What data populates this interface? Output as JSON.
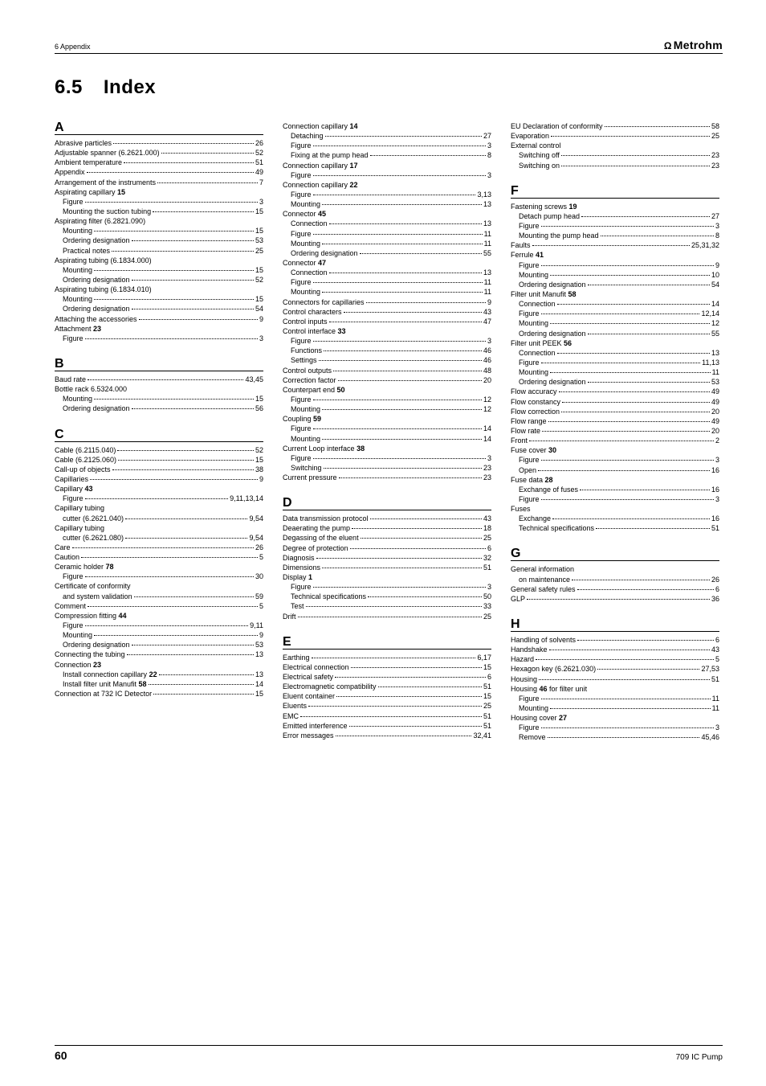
{
  "header": {
    "left": "6 Appendix",
    "logo_glyph": "Ω",
    "brand": "Metrohm"
  },
  "title": {
    "num": "6.5",
    "label": "Index"
  },
  "footer": {
    "pagenum": "60",
    "doc": "709 IC Pump"
  },
  "letters": [
    "A",
    "B",
    "C",
    "D",
    "E",
    "F",
    "G",
    "H"
  ],
  "col1": [
    {
      "type": "letter",
      "text": "A"
    },
    {
      "type": "row",
      "label": "Abrasive particles",
      "page": "26"
    },
    {
      "type": "row",
      "label": "Adjustable spanner (6.2621.000)",
      "page": "52"
    },
    {
      "type": "row",
      "label": "Ambient temperature",
      "page": "51"
    },
    {
      "type": "row",
      "label": "Appendix",
      "page": "49"
    },
    {
      "type": "row",
      "label": "Arrangement of the instruments",
      "page": "7"
    },
    {
      "type": "head",
      "label": "Aspirating capillary",
      "bold": "15"
    },
    {
      "type": "row",
      "indent": 1,
      "label": "Figure",
      "page": "3"
    },
    {
      "type": "row",
      "indent": 1,
      "label": "Mounting the suction tubing",
      "page": "15"
    },
    {
      "type": "head",
      "label": "Aspirating filter (6.2821.090)"
    },
    {
      "type": "row",
      "indent": 1,
      "label": "Mounting",
      "page": "15"
    },
    {
      "type": "row",
      "indent": 1,
      "label": "Ordering designation",
      "page": "53"
    },
    {
      "type": "row",
      "indent": 1,
      "label": "Practical notes",
      "page": "25"
    },
    {
      "type": "head",
      "label": "Aspirating tubing (6.1834.000)"
    },
    {
      "type": "row",
      "indent": 1,
      "label": "Mounting",
      "page": "15"
    },
    {
      "type": "row",
      "indent": 1,
      "label": "Ordering designation",
      "page": "52"
    },
    {
      "type": "head",
      "label": "Aspirating tubing (6.1834.010)"
    },
    {
      "type": "row",
      "indent": 1,
      "label": "Mounting",
      "page": "15"
    },
    {
      "type": "row",
      "indent": 1,
      "label": "Ordering designation",
      "page": "54"
    },
    {
      "type": "row",
      "label": "Attaching the accessories",
      "page": "9"
    },
    {
      "type": "head",
      "label": "Attachment",
      "bold": "23"
    },
    {
      "type": "row",
      "indent": 1,
      "label": "Figure",
      "page": "3"
    },
    {
      "type": "letter",
      "text": "B"
    },
    {
      "type": "row",
      "label": "Baud rate",
      "page": "43,45"
    },
    {
      "type": "head",
      "label": "Bottle rack 6.5324.000"
    },
    {
      "type": "row",
      "indent": 1,
      "label": "Mounting",
      "page": "15"
    },
    {
      "type": "row",
      "indent": 1,
      "label": "Ordering designation",
      "page": "56"
    },
    {
      "type": "letter",
      "text": "C"
    },
    {
      "type": "row",
      "label": "Cable (6.2115.040)",
      "page": "52"
    },
    {
      "type": "row",
      "label": "Cable (6.2125.060)",
      "page": "15"
    },
    {
      "type": "row",
      "label": "Call-up of objects",
      "page": "38"
    },
    {
      "type": "row",
      "label": "Capillaries",
      "page": "9"
    },
    {
      "type": "head",
      "label": "Capillary",
      "bold": "43"
    },
    {
      "type": "row",
      "indent": 1,
      "label": "Figure",
      "page": "9,11,13,14"
    },
    {
      "type": "head",
      "label": "Capillary tubing"
    },
    {
      "type": "row",
      "indent": 1,
      "label": "cutter (6.2621.040)",
      "page": "9,54"
    },
    {
      "type": "head",
      "label": "Capillary tubing"
    },
    {
      "type": "row",
      "indent": 1,
      "label": "cutter (6.2621.080)",
      "page": "9,54"
    },
    {
      "type": "row",
      "label": "Care",
      "page": "26"
    },
    {
      "type": "row",
      "label": "Caution",
      "page": "5"
    },
    {
      "type": "head",
      "label": "Ceramic holder",
      "bold": "78"
    },
    {
      "type": "row",
      "indent": 1,
      "label": "Figure",
      "page": "30"
    },
    {
      "type": "head",
      "label": "Certificate of conformity"
    },
    {
      "type": "row",
      "indent": 1,
      "label": "and system validation",
      "page": "59"
    },
    {
      "type": "row",
      "label": "Comment",
      "page": "5"
    },
    {
      "type": "head",
      "label": "Compression fitting",
      "bold": "44"
    },
    {
      "type": "row",
      "indent": 1,
      "label": "Figure",
      "page": "9,11"
    },
    {
      "type": "row",
      "indent": 1,
      "label": "Mounting",
      "page": "9"
    },
    {
      "type": "row",
      "indent": 1,
      "label": "Ordering designation",
      "page": "53"
    },
    {
      "type": "row",
      "label": "Connecting the tubing",
      "page": "13"
    },
    {
      "type": "head",
      "label": "Connection",
      "bold": "23"
    },
    {
      "type": "row",
      "indent": 1,
      "label": "Install connection capillary",
      "boldin": "22",
      "page": "13"
    },
    {
      "type": "row",
      "indent": 1,
      "label": "Install filter unit Manufit",
      "boldin": "58",
      "page": "14"
    },
    {
      "type": "row",
      "label": "Connection at 732 IC Detector",
      "page": "15"
    }
  ],
  "col2": [
    {
      "type": "head",
      "label": "Connection capillary",
      "bold": "14"
    },
    {
      "type": "row",
      "indent": 1,
      "label": "Detaching",
      "page": "27"
    },
    {
      "type": "row",
      "indent": 1,
      "label": "Figure",
      "page": "3"
    },
    {
      "type": "row",
      "indent": 1,
      "label": "Fixing at the pump head",
      "page": "8"
    },
    {
      "type": "head",
      "label": "Connection capillary",
      "bold": "17"
    },
    {
      "type": "row",
      "indent": 1,
      "label": "Figure",
      "page": "3"
    },
    {
      "type": "head",
      "label": "Connection capillary",
      "bold": "22"
    },
    {
      "type": "row",
      "indent": 1,
      "label": "Figure",
      "page": "3,13"
    },
    {
      "type": "row",
      "indent": 1,
      "label": "Mounting",
      "page": "13"
    },
    {
      "type": "head",
      "label": "Connector",
      "bold": "45"
    },
    {
      "type": "row",
      "indent": 1,
      "label": "Connection",
      "page": "13"
    },
    {
      "type": "row",
      "indent": 1,
      "label": "Figure",
      "page": "11"
    },
    {
      "type": "row",
      "indent": 1,
      "label": "Mounting",
      "page": "11"
    },
    {
      "type": "row",
      "indent": 1,
      "label": "Ordering designation",
      "page": "55"
    },
    {
      "type": "head",
      "label": "Connector",
      "bold": "47"
    },
    {
      "type": "row",
      "indent": 1,
      "label": "Connection",
      "page": "13"
    },
    {
      "type": "row",
      "indent": 1,
      "label": "Figure",
      "page": "11"
    },
    {
      "type": "row",
      "indent": 1,
      "label": "Mounting",
      "page": "11"
    },
    {
      "type": "row",
      "label": "Connectors for capillaries",
      "page": "9"
    },
    {
      "type": "row",
      "label": "Control characters",
      "page": "43"
    },
    {
      "type": "row",
      "label": "Control inputs",
      "page": "47"
    },
    {
      "type": "head",
      "label": "Control interface",
      "bold": "33"
    },
    {
      "type": "row",
      "indent": 1,
      "label": "Figure",
      "page": "3"
    },
    {
      "type": "row",
      "indent": 1,
      "label": "Functions",
      "page": "46"
    },
    {
      "type": "row",
      "indent": 1,
      "label": "Settings",
      "page": "46"
    },
    {
      "type": "row",
      "label": "Control outputs",
      "page": "48"
    },
    {
      "type": "row",
      "label": "Correction factor",
      "page": "20"
    },
    {
      "type": "head",
      "label": "Counterpart end",
      "bold": "50"
    },
    {
      "type": "row",
      "indent": 1,
      "label": "Figure",
      "page": "12"
    },
    {
      "type": "row",
      "indent": 1,
      "label": "Mounting",
      "page": "12"
    },
    {
      "type": "head",
      "label": "Coupling",
      "bold": "59"
    },
    {
      "type": "row",
      "indent": 1,
      "label": "Figure",
      "page": "14"
    },
    {
      "type": "row",
      "indent": 1,
      "label": "Mounting",
      "page": "14"
    },
    {
      "type": "head",
      "label": "Current Loop interface",
      "bold": "38"
    },
    {
      "type": "row",
      "indent": 1,
      "label": "Figure",
      "page": "3"
    },
    {
      "type": "row",
      "indent": 1,
      "label": "Switching",
      "page": "23"
    },
    {
      "type": "row",
      "label": "Current pressure",
      "page": "23"
    },
    {
      "type": "letter",
      "text": "D"
    },
    {
      "type": "row",
      "label": "Data transmission protocol",
      "page": "43"
    },
    {
      "type": "row",
      "label": "Deaerating the pump",
      "page": "18"
    },
    {
      "type": "row",
      "label": "Degassing of the eluent",
      "page": "25"
    },
    {
      "type": "row",
      "label": "Degree of protection",
      "page": "6"
    },
    {
      "type": "row",
      "label": "Diagnosis",
      "page": "32"
    },
    {
      "type": "row",
      "label": "Dimensions",
      "page": "51"
    },
    {
      "type": "head",
      "label": "Display",
      "bold": "1"
    },
    {
      "type": "row",
      "indent": 1,
      "label": "Figure",
      "page": "3"
    },
    {
      "type": "row",
      "indent": 1,
      "label": "Technical specifications",
      "page": "50"
    },
    {
      "type": "row",
      "indent": 1,
      "label": "Test",
      "page": "33"
    },
    {
      "type": "row",
      "label": "Drift",
      "page": "25"
    },
    {
      "type": "letter",
      "text": "E"
    },
    {
      "type": "row",
      "label": "Earthing",
      "page": "6,17"
    },
    {
      "type": "row",
      "label": "Electrical connection",
      "page": "15"
    },
    {
      "type": "row",
      "label": "Electrical safety",
      "page": "6"
    },
    {
      "type": "row",
      "label": "Electromagnetic compatibility",
      "page": "51"
    },
    {
      "type": "row",
      "label": "Eluent container",
      "page": "15"
    },
    {
      "type": "row",
      "label": "Eluents",
      "page": "25"
    },
    {
      "type": "row",
      "label": "EMC",
      "page": "51"
    },
    {
      "type": "row",
      "label": "Emitted interference",
      "page": "51"
    },
    {
      "type": "row",
      "label": "Error messages",
      "page": "32,41"
    }
  ],
  "col3": [
    {
      "type": "row",
      "label": "EU Declaration of conformity",
      "page": "58"
    },
    {
      "type": "row",
      "label": "Evaporation",
      "page": "25"
    },
    {
      "type": "head",
      "label": "External control"
    },
    {
      "type": "row",
      "indent": 1,
      "label": "Switching off",
      "page": "23"
    },
    {
      "type": "row",
      "indent": 1,
      "label": "Switching on",
      "page": "23"
    },
    {
      "type": "letter",
      "text": "F"
    },
    {
      "type": "head",
      "label": "Fastening screws",
      "bold": "19"
    },
    {
      "type": "row",
      "indent": 1,
      "label": "Detach pump head",
      "page": "27"
    },
    {
      "type": "row",
      "indent": 1,
      "label": "Figure",
      "page": "3"
    },
    {
      "type": "row",
      "indent": 1,
      "label": "Mounting the pump head",
      "page": "8"
    },
    {
      "type": "row",
      "label": "Faults",
      "page": "25,31,32"
    },
    {
      "type": "head",
      "label": "Ferrule",
      "bold": "41"
    },
    {
      "type": "row",
      "indent": 1,
      "label": "Figure",
      "page": "9"
    },
    {
      "type": "row",
      "indent": 1,
      "label": "Mounting",
      "page": "10"
    },
    {
      "type": "row",
      "indent": 1,
      "label": "Ordering designation",
      "page": "54"
    },
    {
      "type": "head",
      "label": "Filter unit Manufit",
      "bold": "58"
    },
    {
      "type": "row",
      "indent": 1,
      "label": "Connection",
      "page": "14"
    },
    {
      "type": "row",
      "indent": 1,
      "label": "Figure",
      "page": "12,14"
    },
    {
      "type": "row",
      "indent": 1,
      "label": "Mounting",
      "page": "12"
    },
    {
      "type": "row",
      "indent": 1,
      "label": "Ordering designation",
      "page": "55"
    },
    {
      "type": "head",
      "label": "Filter unit PEEK",
      "bold": "56"
    },
    {
      "type": "row",
      "indent": 1,
      "label": "Connection",
      "page": "13"
    },
    {
      "type": "row",
      "indent": 1,
      "label": "Figure",
      "page": "11,13"
    },
    {
      "type": "row",
      "indent": 1,
      "label": "Mounting",
      "page": "11"
    },
    {
      "type": "row",
      "indent": 1,
      "label": "Ordering designation",
      "page": "53"
    },
    {
      "type": "row",
      "label": "Flow accuracy",
      "page": "49"
    },
    {
      "type": "row",
      "label": "Flow constancy",
      "page": "49"
    },
    {
      "type": "row",
      "label": "Flow correction",
      "page": "20"
    },
    {
      "type": "row",
      "label": "Flow range",
      "page": "49"
    },
    {
      "type": "row",
      "label": "Flow rate",
      "page": "20"
    },
    {
      "type": "row",
      "label": "Front",
      "page": "2"
    },
    {
      "type": "head",
      "label": "Fuse cover",
      "bold": "30"
    },
    {
      "type": "row",
      "indent": 1,
      "label": "Figure",
      "page": "3"
    },
    {
      "type": "row",
      "indent": 1,
      "label": "Open",
      "page": "16"
    },
    {
      "type": "head",
      "label": "Fuse data",
      "bold": "28"
    },
    {
      "type": "row",
      "indent": 1,
      "label": "Exchange of fuses",
      "page": "16"
    },
    {
      "type": "row",
      "indent": 1,
      "label": "Figure",
      "page": "3"
    },
    {
      "type": "head",
      "label": "Fuses"
    },
    {
      "type": "row",
      "indent": 1,
      "label": "Exchange",
      "page": "16"
    },
    {
      "type": "row",
      "indent": 1,
      "label": "Technical specifications",
      "page": "51"
    },
    {
      "type": "letter",
      "text": "G"
    },
    {
      "type": "head",
      "label": "General information"
    },
    {
      "type": "row",
      "indent": 1,
      "label": "on maintenance",
      "page": "26"
    },
    {
      "type": "row",
      "label": "General safety rules",
      "page": "6"
    },
    {
      "type": "row",
      "label": "GLP",
      "page": "36"
    },
    {
      "type": "letter",
      "text": "H"
    },
    {
      "type": "row",
      "label": "Handling of solvents",
      "page": "6"
    },
    {
      "type": "row",
      "label": "Handshake",
      "page": "43"
    },
    {
      "type": "row",
      "label": "Hazard",
      "page": "5"
    },
    {
      "type": "row",
      "label": "Hexagon key (6.2621.030)",
      "page": "27,53"
    },
    {
      "type": "row",
      "label": "Housing",
      "page": "51"
    },
    {
      "type": "head",
      "label": "Housing",
      "bold": "46",
      "tail": " for filter unit"
    },
    {
      "type": "row",
      "indent": 1,
      "label": "Figure",
      "page": "11"
    },
    {
      "type": "row",
      "indent": 1,
      "label": "Mounting",
      "page": "11"
    },
    {
      "type": "head",
      "label": "Housing cover",
      "bold": "27"
    },
    {
      "type": "row",
      "indent": 1,
      "label": "Figure",
      "page": "3"
    },
    {
      "type": "row",
      "indent": 1,
      "label": "Remove",
      "page": "45,46"
    }
  ]
}
